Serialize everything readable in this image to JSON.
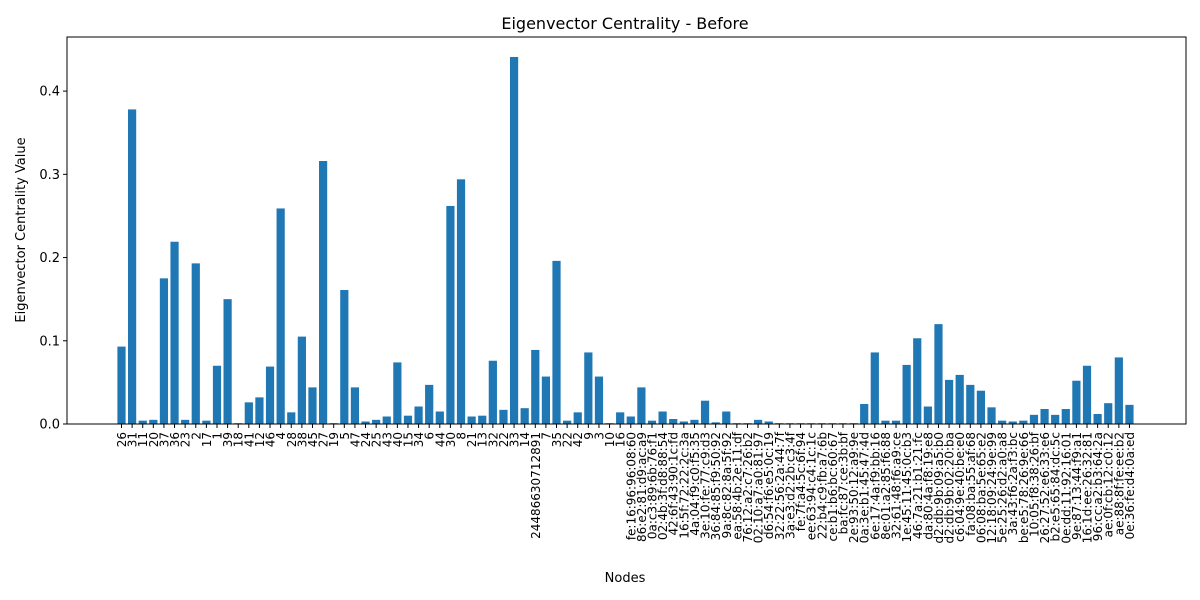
{
  "chart_data": {
    "type": "bar",
    "title": "Eigenvector Centrality - Before",
    "xlabel": "Nodes",
    "ylabel": "Eigenvector Centrality Value",
    "ylim": [
      0,
      0.465
    ],
    "yticks": [
      "0.0",
      "0.1",
      "0.2",
      "0.3",
      "0.4"
    ],
    "grid": false,
    "bar_color": "#1f77b4",
    "categories": [
      "26",
      "31",
      "11",
      "20",
      "37",
      "36",
      "23",
      "2",
      "17",
      "1",
      "39",
      "18",
      "41",
      "12",
      "46",
      "4",
      "28",
      "38",
      "45",
      "27",
      "19",
      "5",
      "47",
      "24",
      "25",
      "43",
      "40",
      "15",
      "34",
      "6",
      "44",
      "30",
      "8",
      "21",
      "13",
      "32",
      "22",
      "33",
      "14",
      "24486630712891",
      "7",
      "35",
      "22",
      "42",
      "9",
      "3",
      "10",
      "16",
      "fe:16:96:96:08:60",
      "86:e2:81:d9:ac:a9",
      "0a:c3:89:6b:76:f1",
      "02:4b:3f:d8:88:54",
      "42:6f:43:90:1c:fd",
      "16:5f:72:22:2c:3a",
      "4a:04:f9:c0:f5:35",
      "3e:10:fe:77:c9:d3",
      "36:84:85:f9:50:92",
      "9a:8c:82:8a:5f:92",
      "ea:58:4b:2e:11:df",
      "76:12:a2:c7:26:b2",
      "02:10:a7:a0:81:97",
      "d6:54:f6:e5:0c:19",
      "32:22:56:2a:44:7f",
      "3a:e3:d2:2b:c3:4f",
      "fe:7f:a4:5c:6f:94",
      "ee:63:94:c4:1c:1c",
      "22:b4:c9:fb:a7:6b",
      "ce:b1:b6:bc:60:67",
      "ba:fc:87:ce:3b:bf",
      "2e:93:50:12:a9:9e",
      "0a:3e:b1:45:47:4d",
      "6e:17:4a:f9:bb:16",
      "8e:01:a2:85:f6:88",
      "32:61:48:f6:a9:ce",
      "1e:45:11:45:0c:b3",
      "46:7a:21:b1:21:fc",
      "da:80:4a:f8:19:e8",
      "d2:db:9b:09:a5:b0",
      "d2:db:9b:02:20:ba",
      "c6:04:9e:40:be:e0",
      "fa:08:ba:55:af:68",
      "06:08:ba:5e:65:e2",
      "12:18:09:24:9e:99",
      "5e:25:26:d2:a0:a8",
      "3a:43:f6:2a:f3:bc",
      "be:e5:78:26:9e:66",
      "10:05:f8:38:26:bf",
      "26:27:52:e6:33:e6",
      "b2:e5:65:84:dc:5c",
      "0e:dd:11:92:16:01",
      "9e:87:13:44:f9:a1",
      "16:1d:ee:26:32:81",
      "96:cc:a2:b3:64:2a",
      "ae:0f:cb:12:c0:12",
      "ae:88:8f:fe:ee:b2",
      "0e:36:fe:d4:0a:ed"
    ],
    "values": [
      0.093,
      0.378,
      0.004,
      0.005,
      0.175,
      0.219,
      0.005,
      0.193,
      0.004,
      0.07,
      0.15,
      0.001,
      0.026,
      0.032,
      0.069,
      0.259,
      0.014,
      0.105,
      0.044,
      0.316,
      0.001,
      0.161,
      0.044,
      0.003,
      0.005,
      0.009,
      0.074,
      0.01,
      0.021,
      0.047,
      0.015,
      0.262,
      0.294,
      0.009,
      0.01,
      0.076,
      0.017,
      0.441,
      0.019,
      0.089,
      0.057,
      0.196,
      0.004,
      0.014,
      0.086,
      0.057,
      0.001,
      0.014,
      0.009,
      0.044,
      0.004,
      0.015,
      0.006,
      0.003,
      0.005,
      0.028,
      0.002,
      0.015,
      0.001,
      0.001,
      0.005,
      0.003,
      0.001,
      0.001,
      0.001,
      0.001,
      0.001,
      0.001,
      0.001,
      0.001,
      0.024,
      0.086,
      0.004,
      0.004,
      0.071,
      0.103,
      0.021,
      0.12,
      0.053,
      0.059,
      0.047,
      0.04,
      0.02,
      0.004,
      0.003,
      0.004,
      0.011,
      0.018,
      0.011,
      0.018,
      0.052,
      0.07,
      0.012,
      0.025,
      0.08,
      0.023
    ]
  }
}
